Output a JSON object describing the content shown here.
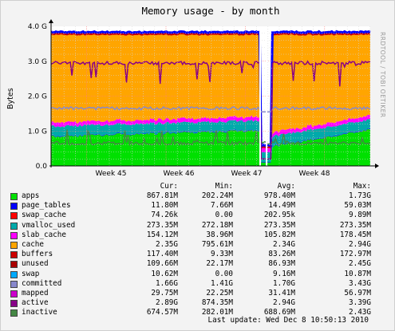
{
  "title": "Memory usage - by month",
  "watermark": "RRDTOOL / TOBI OETIKER",
  "last_update": "Last update: Wed Dec  8 10:50:13 2010",
  "legend_header": {
    "cur": "Cur:",
    "min": "Min:",
    "avg": "Avg:",
    "max": "Max:"
  },
  "chart_data": {
    "type": "area",
    "title": "Memory usage - by month",
    "ylabel": "Bytes",
    "ylim": [
      0,
      4000000000
    ],
    "ytick_labels": [
      "0.0",
      "1.0 G",
      "2.0 G",
      "3.0 G",
      "4.0 G"
    ],
    "ytick_values": [
      0,
      1000000000,
      2000000000,
      3000000000,
      4000000000
    ],
    "xtick_labels": [
      "Week 45",
      "Week 46",
      "Week 47",
      "Week 48"
    ],
    "grid": true,
    "legend_position": "bottom",
    "stacked": true,
    "series": [
      {
        "name": "apps",
        "color": "#00e000",
        "cur": "867.81M",
        "min": "202.24M",
        "avg": "978.40M",
        "max": "1.73G"
      },
      {
        "name": "page_tables",
        "color": "#0000ff",
        "cur": "11.80M",
        "min": "7.66M",
        "avg": "14.49M",
        "max": "59.03M"
      },
      {
        "name": "swap_cache",
        "color": "#ff0000",
        "cur": "74.26k",
        "min": "0.00",
        "avg": "202.95k",
        "max": "9.89M"
      },
      {
        "name": "vmalloc_used",
        "color": "#00aaaa",
        "cur": "273.35M",
        "min": "272.18M",
        "avg": "273.35M",
        "max": "273.35M"
      },
      {
        "name": "slab_cache",
        "color": "#ff00ff",
        "cur": "154.12M",
        "min": "38.96M",
        "avg": "105.82M",
        "max": "178.45M"
      },
      {
        "name": "cache",
        "color": "#ffa500",
        "cur": "2.35G",
        "min": "795.61M",
        "avg": "2.34G",
        "max": "2.94G"
      },
      {
        "name": "buffers",
        "color": "#cc0000",
        "cur": "117.40M",
        "min": "9.33M",
        "avg": "83.26M",
        "max": "172.97M"
      },
      {
        "name": "unused",
        "color": "#aa0000",
        "cur": "109.66M",
        "min": "22.17M",
        "avg": "86.93M",
        "max": "2.45G"
      },
      {
        "name": "swap",
        "color": "#00aaff",
        "cur": "10.62M",
        "min": "0.00",
        "avg": "9.16M",
        "max": "10.87M"
      },
      {
        "name": "committed",
        "color": "#8888cc",
        "cur": "1.66G",
        "min": "1.41G",
        "avg": "1.70G",
        "max": "3.43G"
      },
      {
        "name": "mapped",
        "color": "#cc00cc",
        "cur": "29.75M",
        "min": "22.25M",
        "avg": "31.41M",
        "max": "56.97M"
      },
      {
        "name": "active",
        "color": "#880088",
        "cur": "2.89G",
        "min": "874.35M",
        "avg": "2.94G",
        "max": "3.39G"
      },
      {
        "name": "inactive",
        "color": "#448844",
        "cur": "674.57M",
        "min": "282.01M",
        "avg": "688.69M",
        "max": "2.43G"
      }
    ]
  }
}
